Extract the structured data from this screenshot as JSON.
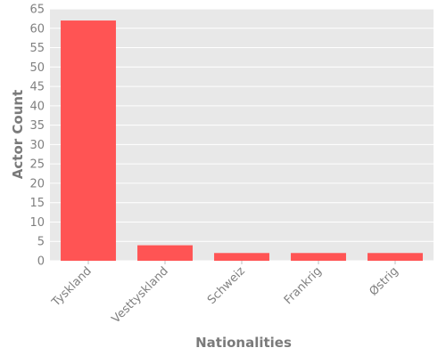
{
  "chart_data": {
    "type": "bar",
    "title": "",
    "xlabel": "Nationalities",
    "ylabel": "Actor Count",
    "categories": [
      "Tyskland",
      "Vesttyskland",
      "Schweiz",
      "Frankrig",
      "Østrig"
    ],
    "values": [
      62,
      4,
      2,
      2,
      2
    ],
    "ylim": [
      0,
      65
    ],
    "yticks": [
      0,
      5,
      10,
      15,
      20,
      25,
      30,
      35,
      40,
      45,
      50,
      55,
      60,
      65
    ],
    "grid": true,
    "legend": "none",
    "colors": {
      "bar": "#ff5454",
      "plot_background": "#e8e8e8",
      "grid": "#ffffff",
      "text": "#808080"
    }
  }
}
